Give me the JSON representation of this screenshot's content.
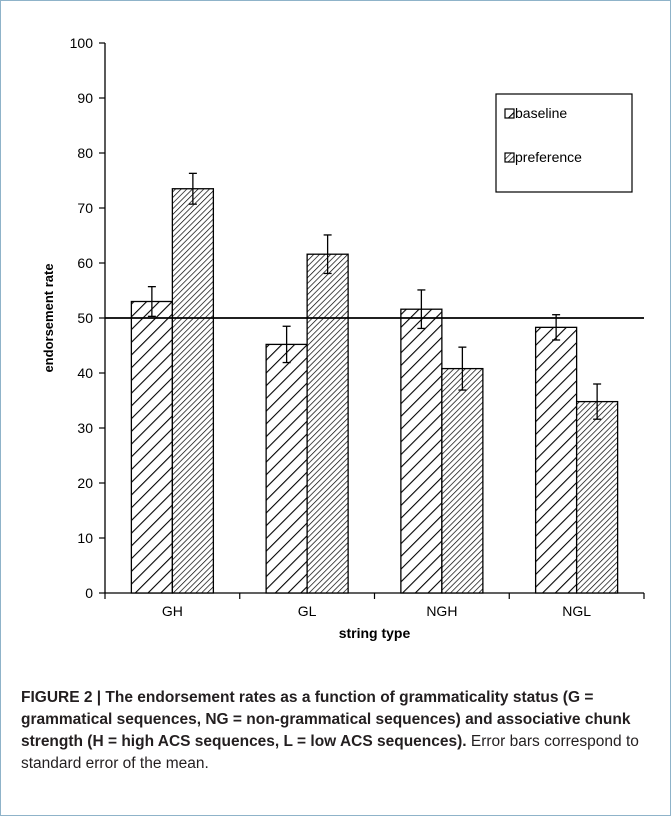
{
  "chart_data": {
    "type": "bar",
    "categories": [
      "GH",
      "GL",
      "NGH",
      "NGL"
    ],
    "series": [
      {
        "name": "baseline",
        "values": [
          53,
          45.2,
          51.6,
          48.3
        ],
        "errors": [
          2.7,
          3.3,
          3.5,
          2.3
        ]
      },
      {
        "name": "preference",
        "values": [
          73.5,
          61.6,
          40.8,
          34.8
        ],
        "errors": [
          2.8,
          3.5,
          3.9,
          3.2
        ]
      }
    ],
    "xlabel": "string type",
    "ylabel": "endorsement rate",
    "ylim": [
      0,
      100
    ],
    "yticks": [
      "0",
      "10",
      "20",
      "30",
      "40",
      "50",
      "60",
      "70",
      "80",
      "90",
      "100"
    ],
    "reference_line": 50,
    "grid": false,
    "legend_position": "top-right"
  },
  "caption": {
    "lead": "FIGURE 2 | The endorsement rates as a function of grammaticality status (G = grammatical sequences, NG = non-grammatical sequences) and associative chunk strength (H = high ACS sequences, L = low ACS sequences).",
    "rest": " Error bars correspond to standard error of the mean."
  },
  "colors": {
    "text": "#231f20",
    "bar_stroke": "#000000",
    "panel_border": "#8fb3c9"
  }
}
